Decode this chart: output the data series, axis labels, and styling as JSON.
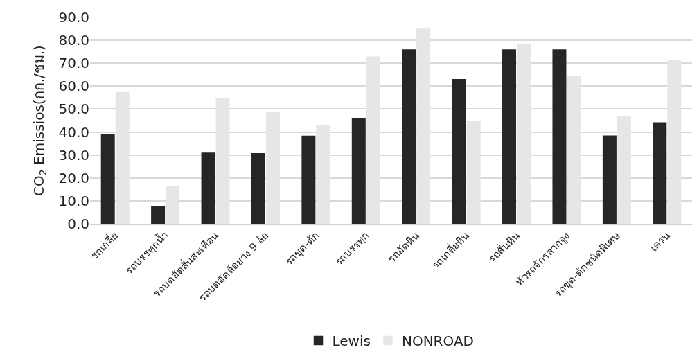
{
  "chart_data": {
    "type": "bar",
    "ylabel": "CO$_{2}$ Emissios(กก./ชม.)",
    "categories": [
      "รถเกลี่ย",
      "รถบรรทุกน้ำ",
      "รถบดอัดสั่นสะเทือน",
      "รถบดอัดล้อยาง 9 ล้อ",
      "รถขุด-ตัก",
      "รถบรรทุก",
      "รถอัดหิน",
      "รถเกลี่ยหิน",
      "รถสั่นหิน",
      "หัวรถจักรลากจูง",
      "รถขุด-ตักชนิดพิเศษ",
      "เครน"
    ],
    "series": [
      {
        "name": "Lewis",
        "color": "#262626",
        "values": [
          38.7,
          7.6,
          30.8,
          30.6,
          38.2,
          45.9,
          75.8,
          62.9,
          75.8,
          75.8,
          38.3,
          44.0
        ]
      },
      {
        "name": "NONROAD",
        "color": "#e6e6e6",
        "values": [
          57.2,
          16.2,
          54.7,
          48.4,
          42.8,
          72.7,
          84.9,
          44.5,
          78.3,
          64.1,
          46.5,
          71.1
        ]
      }
    ],
    "ylim": [
      0,
      90
    ],
    "yticks": [
      {
        "value": 0,
        "label": "0.0"
      },
      {
        "value": 10,
        "label": "10.0"
      },
      {
        "value": 20,
        "label": "20.0"
      },
      {
        "value": 30,
        "label": "30.0"
      },
      {
        "value": 40,
        "label": "40.0"
      },
      {
        "value": 50,
        "label": "50.0"
      },
      {
        "value": 60,
        "label": "60.0"
      },
      {
        "value": 70,
        "label": "70.0"
      },
      {
        "value": 80,
        "label": "80.0"
      },
      {
        "value": 90,
        "label": "90.0"
      }
    ],
    "grid": "y",
    "legend": "bottom"
  }
}
